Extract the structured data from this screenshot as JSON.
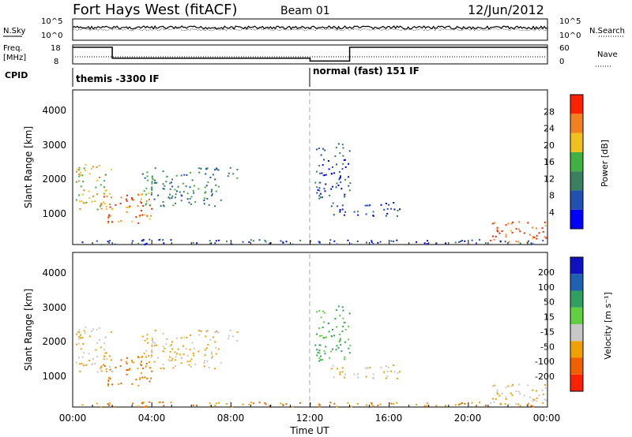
{
  "header": {
    "title": "Fort Hays West (fitACF)",
    "beam": "Beam 01",
    "date": "12/Jun/2012"
  },
  "panels": {
    "nsky_label": "N.Sky",
    "nsky_top": "10^5",
    "nsky_bottom": "10^0",
    "nsearch_top": "10^5",
    "nsearch_bottom": "10^0",
    "nsearch_label": "N.Search",
    "freq_label": "Freq.",
    "freq_unit": "[MHz]",
    "freq_top": "18",
    "freq_bottom": "8",
    "nave_top": "60",
    "nave_bottom": "0",
    "nave_label": "Nave",
    "cpid_label": "CPID",
    "cpid_segments": [
      {
        "label": "themis -3300 IF",
        "start_hour": 0
      },
      {
        "label": "normal (fast) 151 IF",
        "start_hour": 12
      }
    ],
    "freq_step": [
      {
        "start": 0,
        "end": 2,
        "mhz": 16.8
      },
      {
        "start": 2,
        "end": 12,
        "mhz": 11.0
      },
      {
        "start": 12,
        "end": 14,
        "mhz": 9.5
      },
      {
        "start": 14,
        "end": 24,
        "mhz": 16.8
      }
    ]
  },
  "xaxis": {
    "label": "Time UT",
    "ticks": [
      "00:00",
      "04:00",
      "08:00",
      "12:00",
      "16:00",
      "20:00",
      "00:00"
    ],
    "range_hours": [
      0,
      24
    ]
  },
  "power_panel": {
    "ylabel": "Slant Range [km]",
    "yticks": [
      "1000",
      "2000",
      "3000",
      "4000"
    ],
    "cbar_label": "Power [dB]",
    "cbar_ticks": [
      "4",
      "8",
      "12",
      "16",
      "20",
      "24",
      "28"
    ],
    "colors": [
      "#0000ff",
      "#2050b0",
      "#3a7f60",
      "#40b040",
      "#f0c020",
      "#f08020",
      "#ff2000"
    ]
  },
  "velocity_panel": {
    "ylabel": "Slant Range [km]",
    "yticks": [
      "1000",
      "2000",
      "3000",
      "4000"
    ],
    "cbar_label": "Velocity [m s⁻¹]",
    "cbar_ticks": [
      "200",
      "100",
      "50",
      "15",
      "-15",
      "-50",
      "-100",
      "-200"
    ],
    "colors": [
      "#1010c0",
      "#2060b0",
      "#30a060",
      "#60d040",
      "#c8c8c8",
      "#f0a000",
      "#f06000",
      "#ff2000"
    ]
  },
  "chart_data": {
    "type": "heatmap",
    "title": "Fort Hays West (fitACF)",
    "xlabel": "Time UT",
    "ylabel": "Slant Range [km]",
    "xlim_hours": [
      0,
      24
    ],
    "ylim_km": [
      180,
      4600
    ],
    "scatter_regions": [
      {
        "time_start": 0.1,
        "time_end": 2.0,
        "range_min": 1200,
        "range_max": 2500,
        "power_db": 18,
        "velocity": -15
      },
      {
        "time_start": 1.5,
        "time_end": 4.0,
        "range_min": 800,
        "range_max": 1700,
        "power_db": 22,
        "velocity": -50
      },
      {
        "time_start": 3.5,
        "time_end": 7.5,
        "range_min": 1300,
        "range_max": 2400,
        "power_db": 10,
        "velocity": -15
      },
      {
        "time_start": 6.5,
        "time_end": 8.4,
        "range_min": 2100,
        "range_max": 2400,
        "power_db": 8,
        "velocity": -15
      },
      {
        "time_start": 12.2,
        "time_end": 14.0,
        "range_min": 1500,
        "range_max": 3100,
        "power_db": 6,
        "velocity": 50
      },
      {
        "time_start": 13.0,
        "time_end": 16.5,
        "range_min": 1000,
        "range_max": 1400,
        "power_db": 5,
        "velocity": -15
      },
      {
        "time_start": 21.0,
        "time_end": 24.0,
        "range_min": 250,
        "range_max": 850,
        "power_db": 24,
        "velocity": -15
      },
      {
        "time_start": 0.0,
        "time_end": 24.0,
        "range_min": 200,
        "range_max": 350,
        "power_db": 6,
        "velocity": -50
      }
    ]
  }
}
